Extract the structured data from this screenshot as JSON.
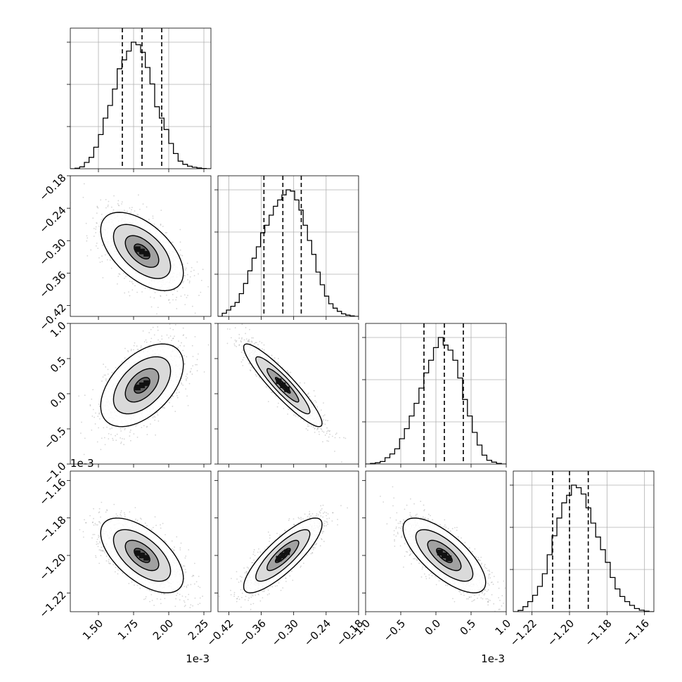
{
  "chart_data": {
    "type": "corner",
    "parameters": [
      {
        "range": [
          1.3,
          2.3
        ],
        "quantiles": [
          1.67,
          1.81,
          1.95
        ],
        "ticks": [
          1.5,
          1.75,
          2.0,
          2.25
        ],
        "tick_labels": [
          "1.50",
          "1.75",
          "2.00",
          "2.25"
        ],
        "offset_text": "1e-3",
        "hist": [
          0,
          0.004,
          0.015,
          0.05,
          0.09,
          0.17,
          0.27,
          0.4,
          0.5,
          0.63,
          0.79,
          0.86,
          0.93,
          1.0,
          0.98,
          0.92,
          0.8,
          0.67,
          0.49,
          0.4,
          0.31,
          0.2,
          0.12,
          0.06,
          0.035,
          0.02,
          0.012,
          0.006,
          0.002,
          0
        ]
      },
      {
        "range": [
          -0.44,
          -0.18
        ],
        "quantiles": [
          -0.355,
          -0.32,
          -0.286
        ],
        "ticks": [
          -0.42,
          -0.36,
          -0.3,
          -0.24,
          -0.18
        ],
        "tick_labels": [
          "−0.42",
          "−0.36",
          "−0.30",
          "−0.24",
          "−0.18"
        ],
        "offset_text": "",
        "hist": [
          0,
          0.025,
          0.05,
          0.08,
          0.11,
          0.18,
          0.26,
          0.36,
          0.46,
          0.55,
          0.66,
          0.72,
          0.8,
          0.87,
          0.92,
          0.96,
          1.0,
          0.99,
          0.92,
          0.84,
          0.72,
          0.6,
          0.49,
          0.35,
          0.25,
          0.16,
          0.1,
          0.065,
          0.04,
          0.02,
          0.01,
          0.004,
          0
        ]
      },
      {
        "range": [
          -1.0,
          1.0
        ],
        "quantiles": [
          -0.17,
          0.12,
          0.39
        ],
        "ticks": [
          -1.0,
          -0.5,
          0.0,
          0.5,
          1.0
        ],
        "tick_labels": [
          "−1.0",
          "−0.5",
          "0.0",
          "0.5",
          "1.0"
        ],
        "offset_text": "1e-3",
        "hist": [
          0,
          0.005,
          0.01,
          0.02,
          0.05,
          0.08,
          0.12,
          0.2,
          0.28,
          0.38,
          0.48,
          0.6,
          0.72,
          0.82,
          0.92,
          1.0,
          0.94,
          0.9,
          0.82,
          0.68,
          0.51,
          0.38,
          0.25,
          0.15,
          0.07,
          0.03,
          0.015,
          0.005,
          0
        ]
      },
      {
        "range": [
          -1.23,
          -1.155
        ],
        "quantiles": [
          -1.209,
          -1.2,
          -1.19
        ],
        "ticks": [
          -1.22,
          -1.2,
          -1.18,
          -1.16
        ],
        "tick_labels": [
          "−1.22",
          "−1.20",
          "−1.18",
          "−1.16"
        ],
        "offset_text": "",
        "hist": [
          0,
          0.01,
          0.04,
          0.08,
          0.13,
          0.2,
          0.3,
          0.45,
          0.6,
          0.74,
          0.86,
          0.92,
          1.0,
          0.98,
          0.93,
          0.82,
          0.7,
          0.59,
          0.49,
          0.39,
          0.27,
          0.18,
          0.12,
          0.08,
          0.05,
          0.025,
          0.012,
          0.004,
          0
        ]
      }
    ],
    "correlations": [
      [
        1,
        -0.55,
        0.5,
        -0.6
      ],
      [
        -0.55,
        1,
        -0.92,
        0.83
      ],
      [
        0.5,
        -0.92,
        1,
        -0.72
      ],
      [
        -0.6,
        0.83,
        -0.72,
        1
      ]
    ],
    "left_offset_texts": [
      "",
      "",
      "1e-3",
      ""
    ],
    "grid": true
  }
}
